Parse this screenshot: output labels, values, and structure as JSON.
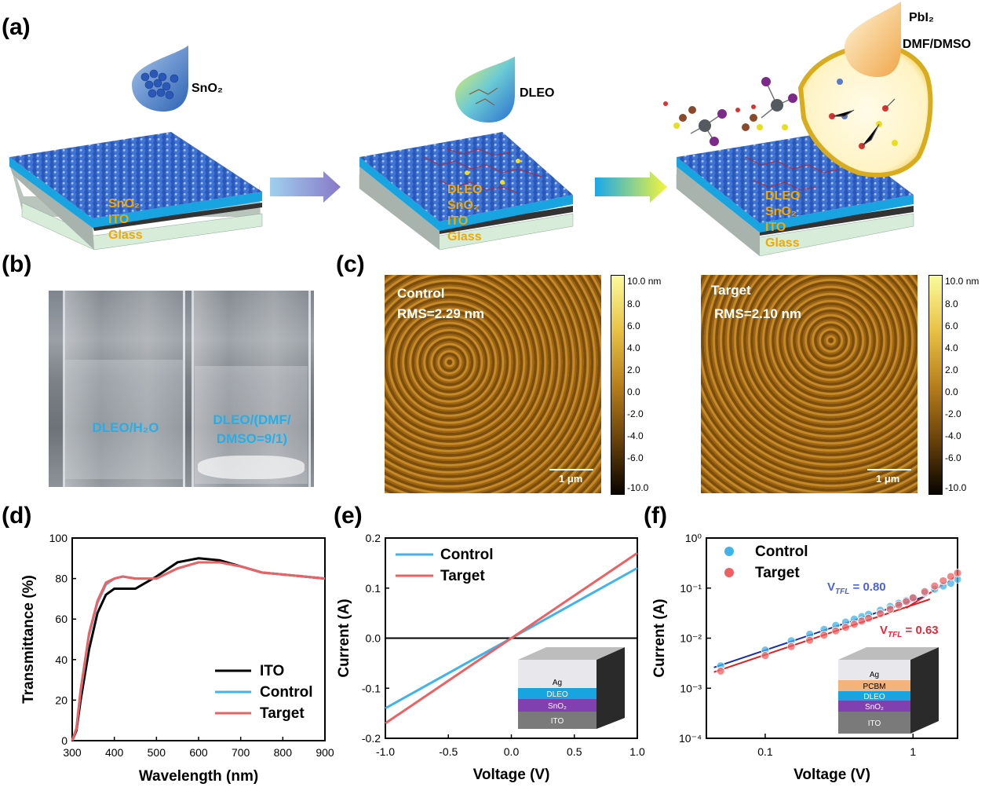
{
  "panels": {
    "a": "(a)",
    "b": "(b)",
    "c": "(c)",
    "d": "(d)",
    "e": "(e)",
    "f": "(f)"
  },
  "panel_a": {
    "drop1": "SnO₂",
    "drop2": "DLEO",
    "drop3_l1": "PbI₂",
    "drop3_l2": "DMF/DMSO",
    "stack1": [
      "SnO₂",
      "ITO",
      "Glass"
    ],
    "stack2": [
      "DLEO",
      "SnO₂",
      "ITO",
      "Glass"
    ],
    "stack3": [
      "DLEO",
      "SnO₂",
      "ITO",
      "Glass"
    ]
  },
  "panel_b": {
    "left_label": "DLEO/H₂O",
    "right_label_l1": "DLEO/(DMF/",
    "right_label_l2": "DMSO=9/1)"
  },
  "panel_c": {
    "left_name": "Control",
    "left_rms": "RMS=2.29 nm",
    "right_name": "Target",
    "right_rms": "RMS=2.10 nm",
    "scale_bar": "1 μm",
    "colorbar_ticks": [
      "10.0 nm",
      "8.0",
      "6.0",
      "4.0",
      "2.0",
      "0.0",
      "-2.0",
      "-4.0",
      "-6.0",
      "-10.0"
    ]
  },
  "colors": {
    "ITO": "#000000",
    "Control": "#3fb4ea",
    "Target": "#ef6062",
    "vtfl_control": "#4a5fe8",
    "vtfl_target": "#e8283a",
    "accent_text": "#f2a800"
  },
  "chart_data": [
    {
      "id": "d",
      "type": "line",
      "xlabel": "Wavelength (nm)",
      "ylabel": "Transmittance (%)",
      "xlim": [
        300,
        900
      ],
      "ylim": [
        0,
        100
      ],
      "xticks": [
        300,
        400,
        500,
        600,
        700,
        800,
        900
      ],
      "yticks": [
        0,
        20,
        40,
        60,
        80,
        100
      ],
      "legend": "bottom-right",
      "series": [
        {
          "name": "ITO",
          "x": [
            300,
            310,
            320,
            340,
            360,
            380,
            400,
            420,
            450,
            500,
            550,
            600,
            650,
            700,
            750,
            800,
            850,
            900
          ],
          "y": [
            0,
            5,
            20,
            45,
            63,
            72,
            75,
            75,
            75,
            81,
            88,
            90,
            89,
            86,
            83,
            82,
            81,
            80
          ]
        },
        {
          "name": "Control",
          "x": [
            300,
            310,
            320,
            340,
            360,
            380,
            400,
            420,
            450,
            500,
            550,
            600,
            650,
            700,
            750,
            800,
            850,
            900
          ],
          "y": [
            0,
            6,
            24,
            52,
            68,
            77,
            80,
            81,
            80,
            80,
            85,
            88,
            88,
            86,
            83,
            82,
            81,
            80
          ]
        },
        {
          "name": "Target",
          "x": [
            300,
            310,
            320,
            340,
            360,
            380,
            400,
            420,
            450,
            500,
            550,
            600,
            650,
            700,
            750,
            800,
            850,
            900
          ],
          "y": [
            0,
            6,
            25,
            53,
            69,
            78,
            80,
            81,
            80,
            80,
            85,
            88,
            88,
            86,
            83,
            82,
            81,
            80
          ]
        }
      ]
    },
    {
      "id": "e",
      "type": "line",
      "xlabel": "Voltage (V)",
      "ylabel": "Current (A)",
      "xlim": [
        -1.0,
        1.0
      ],
      "ylim": [
        -0.2,
        0.2
      ],
      "xticks": [
        "-1.0",
        "-0.5",
        "0.0",
        "0.5",
        "1.0"
      ],
      "yticks": [
        "-0.2",
        "-0.1",
        "0.0",
        "0.1",
        "0.2"
      ],
      "legend": "top-left",
      "series": [
        {
          "name": "Control",
          "x": [
            -1.0,
            1.0
          ],
          "y": [
            -0.14,
            0.14
          ]
        },
        {
          "name": "Target",
          "x": [
            -1.0,
            1.0
          ],
          "y": [
            -0.17,
            0.17
          ]
        }
      ],
      "inset_layers": [
        "Ag",
        "DLEO",
        "SnO₂",
        "ITO"
      ]
    },
    {
      "id": "f",
      "type": "scatter",
      "log_scale": true,
      "xlabel": "Voltage (V)",
      "ylabel": "Current (A)",
      "xlim": [
        0.04,
        2.0
      ],
      "ylim": [
        0.0001,
        1
      ],
      "xticks": [
        "0.1",
        "1"
      ],
      "yticks": [
        "10⁰",
        "10⁻¹",
        "10⁻²",
        "10⁻³",
        "10⁻⁴"
      ],
      "legend": "top-left",
      "series": [
        {
          "name": "Control",
          "x": [
            0.05,
            0.1,
            0.15,
            0.2,
            0.25,
            0.3,
            0.35,
            0.4,
            0.45,
            0.5,
            0.6,
            0.7,
            0.8,
            0.9,
            1.0,
            1.2,
            1.4,
            1.6,
            1.8,
            2.0
          ],
          "y": [
            0.0028,
            0.0058,
            0.0089,
            0.012,
            0.015,
            0.018,
            0.021,
            0.024,
            0.027,
            0.03,
            0.036,
            0.043,
            0.05,
            0.057,
            0.065,
            0.08,
            0.095,
            0.11,
            0.125,
            0.15
          ]
        },
        {
          "name": "Target",
          "x": [
            0.05,
            0.1,
            0.15,
            0.2,
            0.25,
            0.3,
            0.35,
            0.4,
            0.45,
            0.5,
            0.6,
            0.7,
            0.8,
            0.9,
            1.0,
            1.2,
            1.4,
            1.6,
            1.8,
            2.0
          ],
          "y": [
            0.0022,
            0.0045,
            0.0068,
            0.0091,
            0.0115,
            0.014,
            0.0165,
            0.019,
            0.022,
            0.025,
            0.031,
            0.038,
            0.046,
            0.054,
            0.064,
            0.085,
            0.11,
            0.14,
            0.17,
            0.2
          ]
        }
      ],
      "annotations": [
        {
          "text": "V",
          "sub": "TFL",
          "value": " = 0.80"
        },
        {
          "text": "V",
          "sub": "TFL",
          "value": " = 0.63"
        }
      ],
      "inset_layers": [
        "Ag",
        "PCBM",
        "DLEO",
        "SnO₂",
        "ITO"
      ]
    }
  ]
}
